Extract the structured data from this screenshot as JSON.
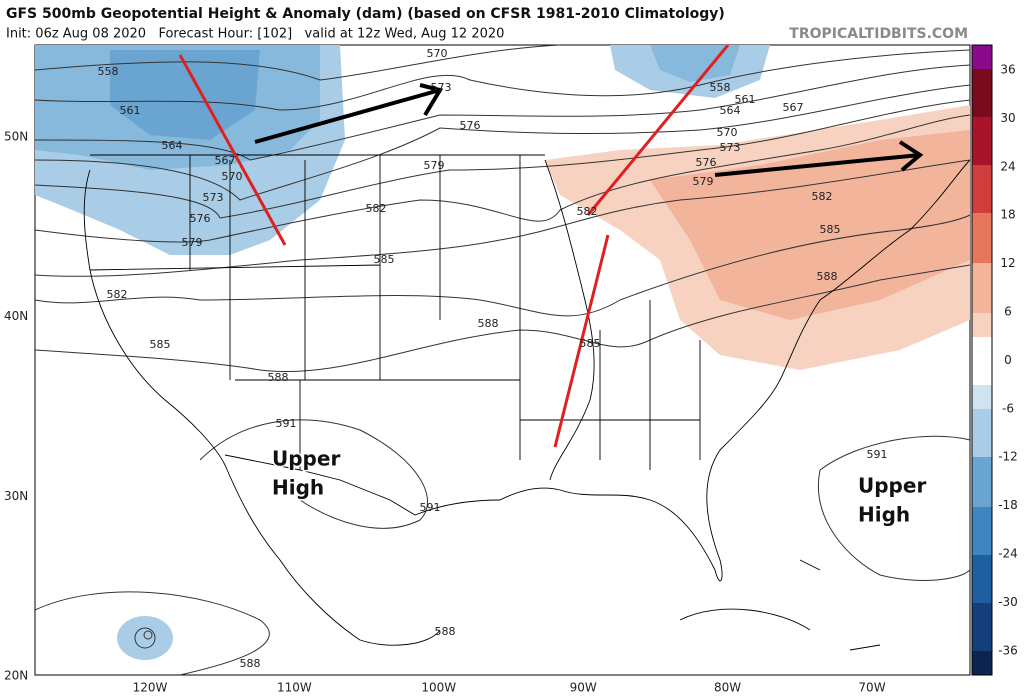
{
  "header": {
    "title": "GFS 500mb Geopotential Height & Anomaly (dam) (based on CFSR 1981-2010 Climatology)",
    "subtitle": "Init: 06z Aug 08 2020   Forecast Hour: [102]   valid at 12z Wed, Aug 12 2020",
    "credit": "TROPICALTIDBITS.COM"
  },
  "colorbar": {
    "ticks": [
      "36",
      "30",
      "24",
      "18",
      "12",
      "6",
      "0",
      "-6",
      "-12",
      "-18",
      "-24",
      "-30",
      "-36"
    ]
  },
  "latitude_labels": [
    "50N",
    "40N",
    "30N",
    "20N"
  ],
  "longitude_labels": [
    "120W",
    "110W",
    "100W",
    "90W",
    "80W",
    "70W"
  ],
  "contour_labels": [
    "558",
    "561",
    "564",
    "567",
    "570",
    "573",
    "576",
    "579",
    "570",
    "573",
    "576",
    "579",
    "582",
    "585",
    "582",
    "585",
    "588",
    "591",
    "591",
    "588",
    "585",
    "588",
    "588",
    "558",
    "561",
    "564",
    "567",
    "570",
    "573",
    "576",
    "579",
    "582",
    "585",
    "588",
    "591",
    "582"
  ],
  "annotations": [
    {
      "lines": [
        "Upper",
        "High"
      ]
    },
    {
      "lines": [
        "Upper",
        "High"
      ]
    }
  ]
}
